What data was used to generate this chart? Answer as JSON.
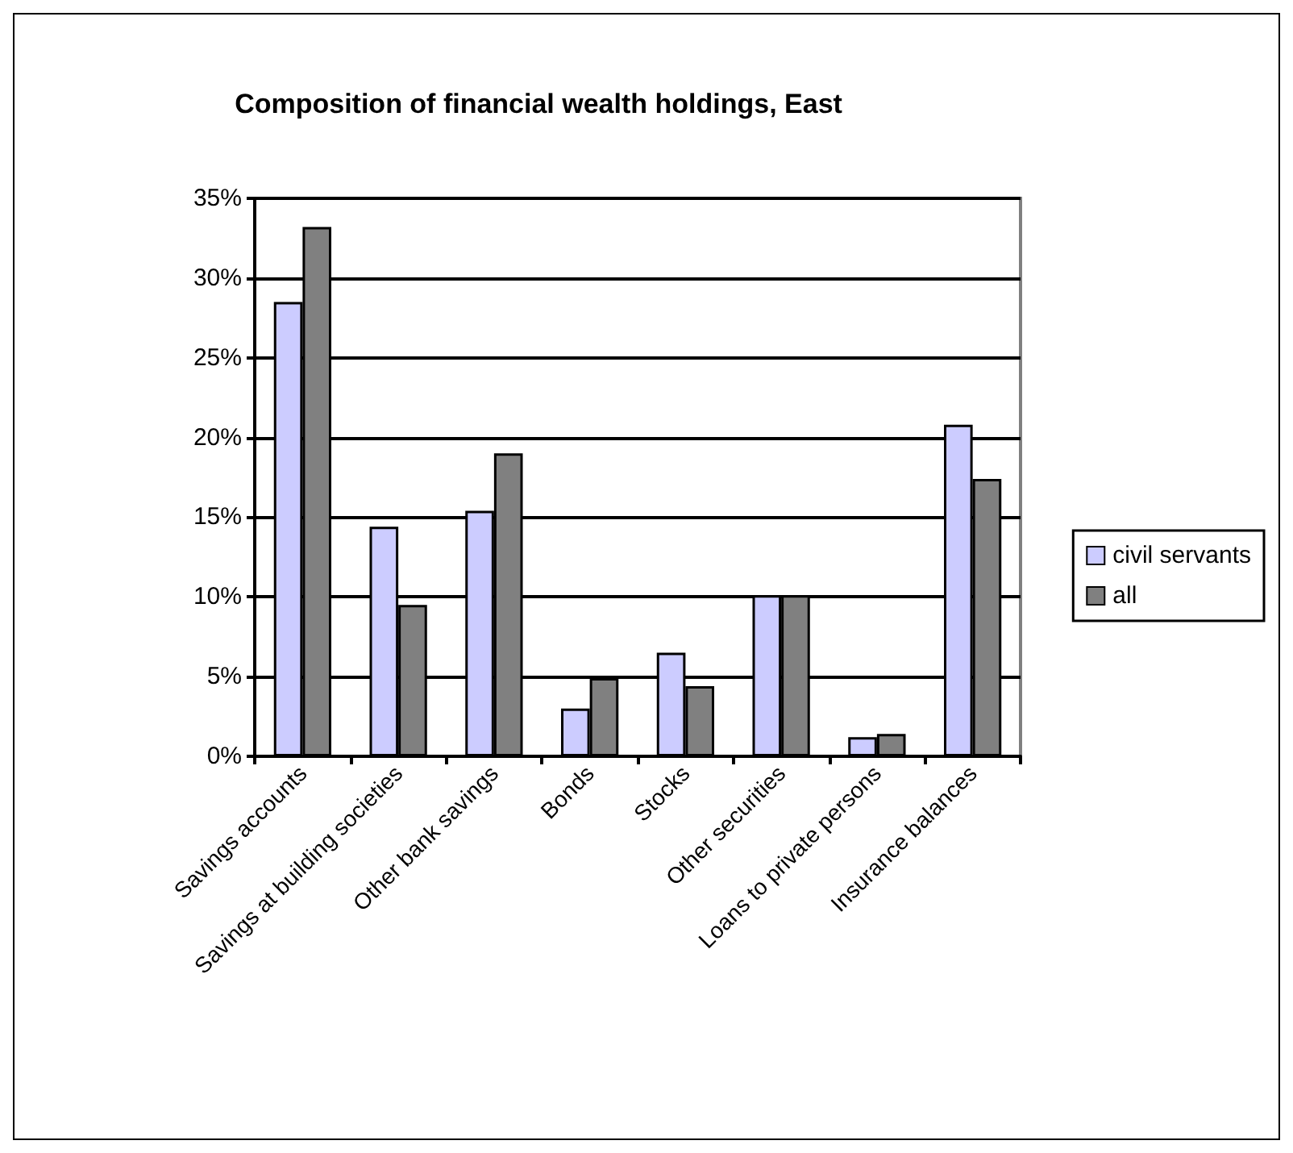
{
  "chart_data": {
    "type": "bar",
    "title": "Composition of financial wealth holdings, East",
    "categories": [
      "Savings accounts",
      "Savings at building societies",
      "Other bank savings",
      "Bonds",
      "Stocks",
      "Other securities",
      "Loans to private persons",
      "Insurance balances"
    ],
    "series": [
      {
        "name": "civil servants",
        "color": "#ccccff",
        "values": [
          28.5,
          14.4,
          15.4,
          3.0,
          6.5,
          10.1,
          1.2,
          20.8
        ]
      },
      {
        "name": "all",
        "color": "#808080",
        "values": [
          33.2,
          9.5,
          19.0,
          4.9,
          4.4,
          10.1,
          1.4,
          17.4
        ]
      }
    ],
    "ylim": [
      0,
      35
    ],
    "yticks": [
      {
        "value": 0,
        "label": "0%"
      },
      {
        "value": 5,
        "label": "5%"
      },
      {
        "value": 10,
        "label": "10%"
      },
      {
        "value": 15,
        "label": "15%"
      },
      {
        "value": 20,
        "label": "20%"
      },
      {
        "value": 25,
        "label": "25%"
      },
      {
        "value": 30,
        "label": "30%"
      },
      {
        "value": 35,
        "label": "35%"
      }
    ],
    "grid": "y",
    "legend": "right"
  }
}
